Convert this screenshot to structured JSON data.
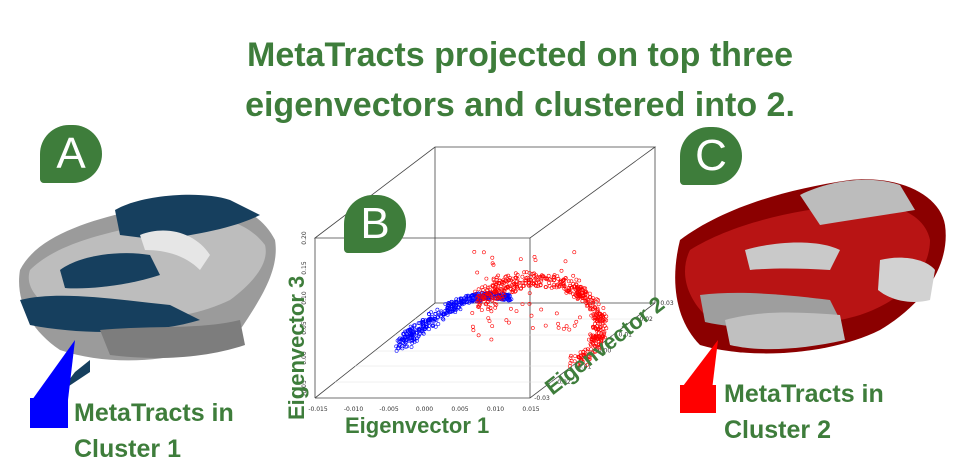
{
  "title": "MetaTracts projected on top three eigenvectors and clustered into 2.",
  "panels": {
    "a": {
      "badge": "A",
      "caption_line1": "MetaTracts in",
      "caption_line2": "Cluster 1",
      "color": "#0000ff"
    },
    "b": {
      "badge": "B"
    },
    "c": {
      "badge": "C",
      "caption_line1": "MetaTracts in",
      "caption_line2": "Cluster 2",
      "color": "#ff0000"
    }
  },
  "chart_data": {
    "type": "scatter",
    "xlabel": "Eigenvector 1",
    "ylabel": "Eigenvector 2",
    "zlabel": "Eigenvector 3",
    "x_ticks": [
      "-0.015",
      "-0.010",
      "-0.005",
      "0.000",
      "0.005",
      "0.010",
      "0.015"
    ],
    "y_ticks": [
      "-0.03",
      "-0.02",
      "-0.01",
      "0.00",
      "0.01",
      "0.02",
      "0.03"
    ],
    "z_ticks": [
      "0.20",
      "0.15",
      "0.10",
      "0.05",
      "0.00",
      "-0.05"
    ],
    "series": [
      {
        "color": "#0000ff"
      },
      {
        "color": "#ff0000"
      }
    ]
  }
}
